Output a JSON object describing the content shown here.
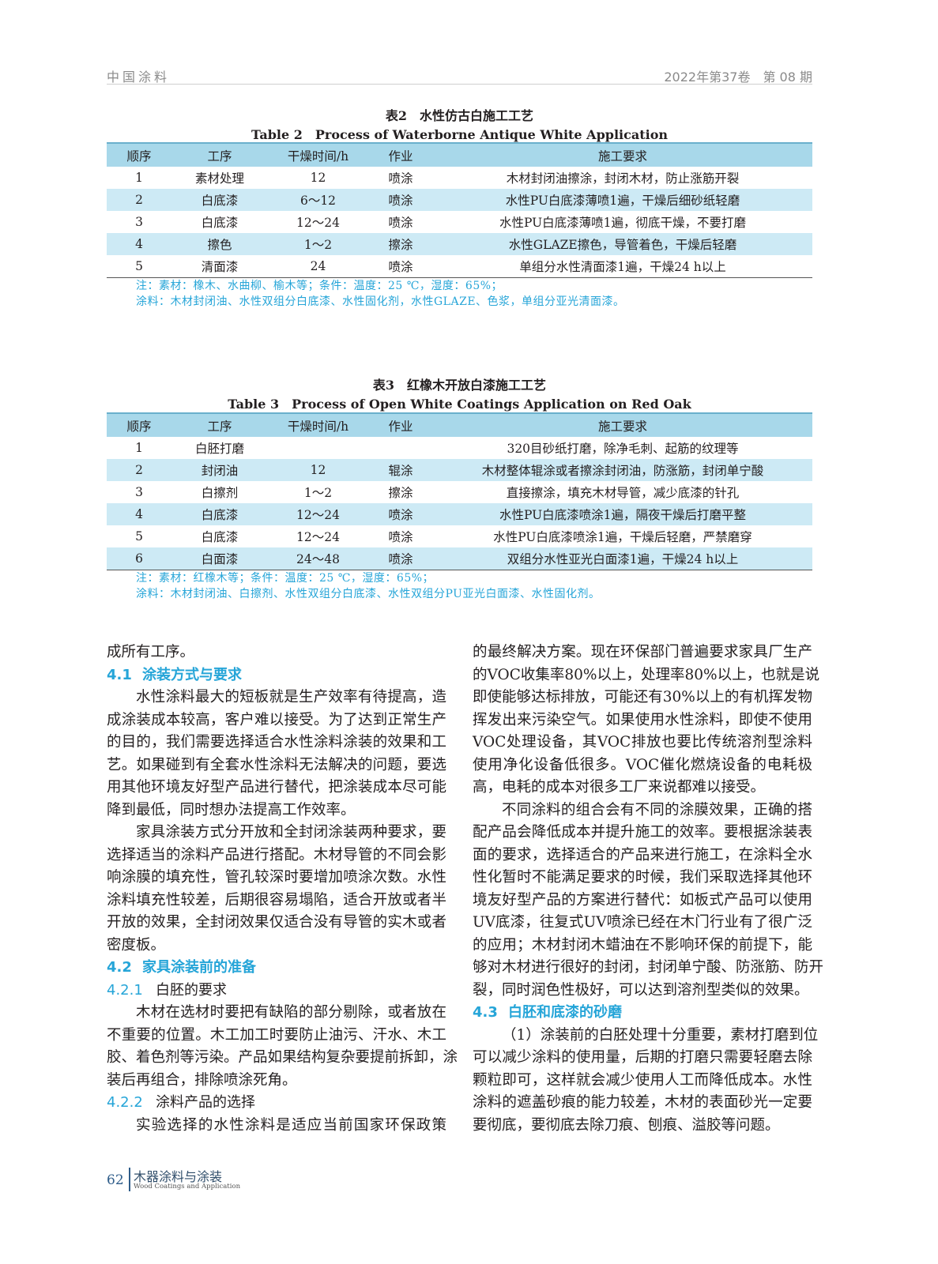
{
  "header": {
    "journal": "中国涂料",
    "issue": "2022年第37卷　第 08 期"
  },
  "table2": {
    "title_cn": "表2　水性仿古白施工工艺",
    "title_en": "Table 2　Process of Waterborne Antique White Application",
    "columns": [
      "顺序",
      "工序",
      "干燥时间/h",
      "作业",
      "施工要求"
    ],
    "rows": [
      [
        "1",
        "素材处理",
        "12",
        "喷涂",
        "木材封闭油擦涂，封闭木材，防止涨筋开裂"
      ],
      [
        "2",
        "白底漆",
        "6～12",
        "喷涂",
        "水性PU白底漆薄喷1遍，干燥后细砂纸轻磨"
      ],
      [
        "3",
        "白底漆",
        "12～24",
        "喷涂",
        "水性PU白底漆薄喷1遍，彻底干燥，不要打磨"
      ],
      [
        "4",
        "擦色",
        "1～2",
        "擦涂",
        "水性GLAZE擦色，导管着色，干燥后轻磨"
      ],
      [
        "5",
        "清面漆",
        "24",
        "喷涂",
        "单组分水性清面漆1遍，干燥24 h以上"
      ]
    ],
    "note1": "注：素材：橡木、水曲柳、榆木等；条件：温度：25 ℃，湿度：65%；",
    "note2": "涂料：木材封闭油、水性双组分白底漆、水性固化剂，水性GLAZE、色浆，单组分亚光清面漆。"
  },
  "table3": {
    "title_cn": "表3　红橡木开放白漆施工工艺",
    "title_en": "Table 3　Process of Open White Coatings Application on Red Oak",
    "columns": [
      "顺序",
      "工序",
      "干燥时间/h",
      "作业",
      "施工要求"
    ],
    "rows": [
      [
        "1",
        "白胚打磨",
        "",
        "",
        "320目砂纸打磨，除净毛刺、起筋的纹理等"
      ],
      [
        "2",
        "封闭油",
        "12",
        "辊涂",
        "木材整体辊涂或者擦涂封闭油，防涨筋，封闭单宁酸"
      ],
      [
        "3",
        "白擦剂",
        "1～2",
        "擦涂",
        "直接擦涂，填充木材导管，减少底漆的针孔"
      ],
      [
        "4",
        "白底漆",
        "12～24",
        "喷涂",
        "水性PU白底漆喷涂1遍，隔夜干燥后打磨平整"
      ],
      [
        "5",
        "白底漆",
        "12～24",
        "喷涂",
        "水性PU白底漆喷涂1遍，干燥后轻磨，严禁磨穿"
      ],
      [
        "6",
        "白面漆",
        "24～48",
        "喷涂",
        "双组分水性亚光白面漆1遍，干燥24 h以上"
      ]
    ],
    "note1": "注：素材：红橡木等；条件：温度：25 ℃，湿度：65%；",
    "note2": "涂料：木材封闭油、白擦剂、水性双组分白底漆、水性双组分PU亚光白面漆、水性固化剂。"
  },
  "body": {
    "left": [
      {
        "t": "p",
        "text": "成所有工序。",
        "last": true
      },
      {
        "t": "h2",
        "num": "4.1",
        "text": "涂装方式与要求"
      },
      {
        "t": "p",
        "text": "水性涂料最大的短板就是生产效率有待提高，造",
        "ind": true
      },
      {
        "t": "p",
        "text": "成涂装成本较高，客户难以接受。为了达到正常生产"
      },
      {
        "t": "p",
        "text": "的目的，我们需要选择适合水性涂料涂装的效果和工"
      },
      {
        "t": "p",
        "text": "艺。如果碰到有全套水性涂料无法解决的问题，要选"
      },
      {
        "t": "p",
        "text": "用其他环境友好型产品进行替代，把涂装成本尽可能"
      },
      {
        "t": "p",
        "text": "降到最低，同时想办法提高工作效率。",
        "last": true
      },
      {
        "t": "p",
        "text": "家具涂装方式分开放和全封闭涂装两种要求，要",
        "ind": true
      },
      {
        "t": "p",
        "text": "选择适当的涂料产品进行搭配。木材导管的不同会影"
      },
      {
        "t": "p",
        "text": "响涂膜的填充性，管孔较深时要增加喷涂次数。水性"
      },
      {
        "t": "p",
        "text": "涂料填充性较差，后期很容易塌陷，适合开放或者半"
      },
      {
        "t": "p",
        "text": "开放的效果，全封闭效果仅适合没有导管的实木或者"
      },
      {
        "t": "p",
        "text": "密度板。",
        "last": true
      },
      {
        "t": "h2",
        "num": "4.2",
        "text": "家具涂装前的准备"
      },
      {
        "t": "h3",
        "num": "4.2.1",
        "text": "白胚的要求"
      },
      {
        "t": "p",
        "text": "木材在选材时要把有缺陷的部分剔除，或者放在",
        "ind": true
      },
      {
        "t": "p",
        "text": "不重要的位置。木工加工时要防止油污、汗水、木工"
      },
      {
        "t": "p",
        "text": "胶、着色剂等污染。产品如果结构复杂要提前拆卸，涂"
      },
      {
        "t": "p",
        "text": "装后再组合，排除喷涂死角。",
        "last": true
      },
      {
        "t": "h3",
        "num": "4.2.2",
        "text": "涂料产品的选择"
      },
      {
        "t": "p",
        "text": "实验选择的水性涂料是适应当前国家环保政策",
        "ind": true
      }
    ],
    "right": [
      {
        "t": "p",
        "text": "的最终解决方案。现在环保部门普遍要求家具厂生产"
      },
      {
        "t": "p",
        "text": "的VOC收集率80%以上，处理率80%以上，也就是说"
      },
      {
        "t": "p",
        "text": "即使能够达标排放，可能还有30%以上的有机挥发物"
      },
      {
        "t": "p",
        "text": "挥发出来污染空气。如果使用水性涂料，即使不使用"
      },
      {
        "t": "p",
        "text": "VOC处理设备，其VOC排放也要比传统溶剂型涂料"
      },
      {
        "t": "p",
        "text": "使用净化设备低很多。VOC催化燃烧设备的电耗极"
      },
      {
        "t": "p",
        "text": "高，电耗的成本对很多工厂来说都难以接受。",
        "last": true
      },
      {
        "t": "p",
        "text": "不同涂料的组合会有不同的涂膜效果，正确的搭",
        "ind": true
      },
      {
        "t": "p",
        "text": "配产品会降低成本并提升施工的效率。要根据涂装表"
      },
      {
        "t": "p",
        "text": "面的要求，选择适合的产品来进行施工，在涂料全水"
      },
      {
        "t": "p",
        "text": "性化暂时不能满足要求的时候，我们采取选择其他环"
      },
      {
        "t": "p",
        "text": "境友好型产品的方案进行替代：如板式产品可以使用"
      },
      {
        "t": "p",
        "text": "UV底漆，往复式UV喷涂已经在木门行业有了很广泛"
      },
      {
        "t": "p",
        "text": "的应用；木材封闭木蜡油在不影响环保的前提下，能"
      },
      {
        "t": "p",
        "text": "够对木材进行很好的封闭，封闭单宁酸、防涨筋、防开"
      },
      {
        "t": "p",
        "text": "裂，同时润色性极好，可以达到溶剂型类似的效果。",
        "last": true
      },
      {
        "t": "h2",
        "num": "4.3",
        "text": "白胚和底漆的砂磨"
      },
      {
        "t": "p",
        "text": "（1）涂装前的白胚处理十分重要，素材打磨到位",
        "ind": true
      },
      {
        "t": "p",
        "text": "可以减少涂料的使用量，后期的打磨只需要轻磨去除"
      },
      {
        "t": "p",
        "text": "颗粒即可，这样就会减少使用人工而降低成本。水性"
      },
      {
        "t": "p",
        "text": "涂料的遮盖砂痕的能力较差，木材的表面砂光一定要"
      },
      {
        "t": "p",
        "text": "要彻底，要彻底去除刀痕、刨痕、溢胶等问题。",
        "last": true
      }
    ]
  },
  "footer": {
    "page": "62",
    "journal_cn": "木器涂料与涂装",
    "journal_en": "Wood Coatings and Application"
  },
  "colors": {
    "accent": "#26a5d8",
    "table_header": "#a8d8ea",
    "table_alt_row": "#cdeaf5"
  }
}
